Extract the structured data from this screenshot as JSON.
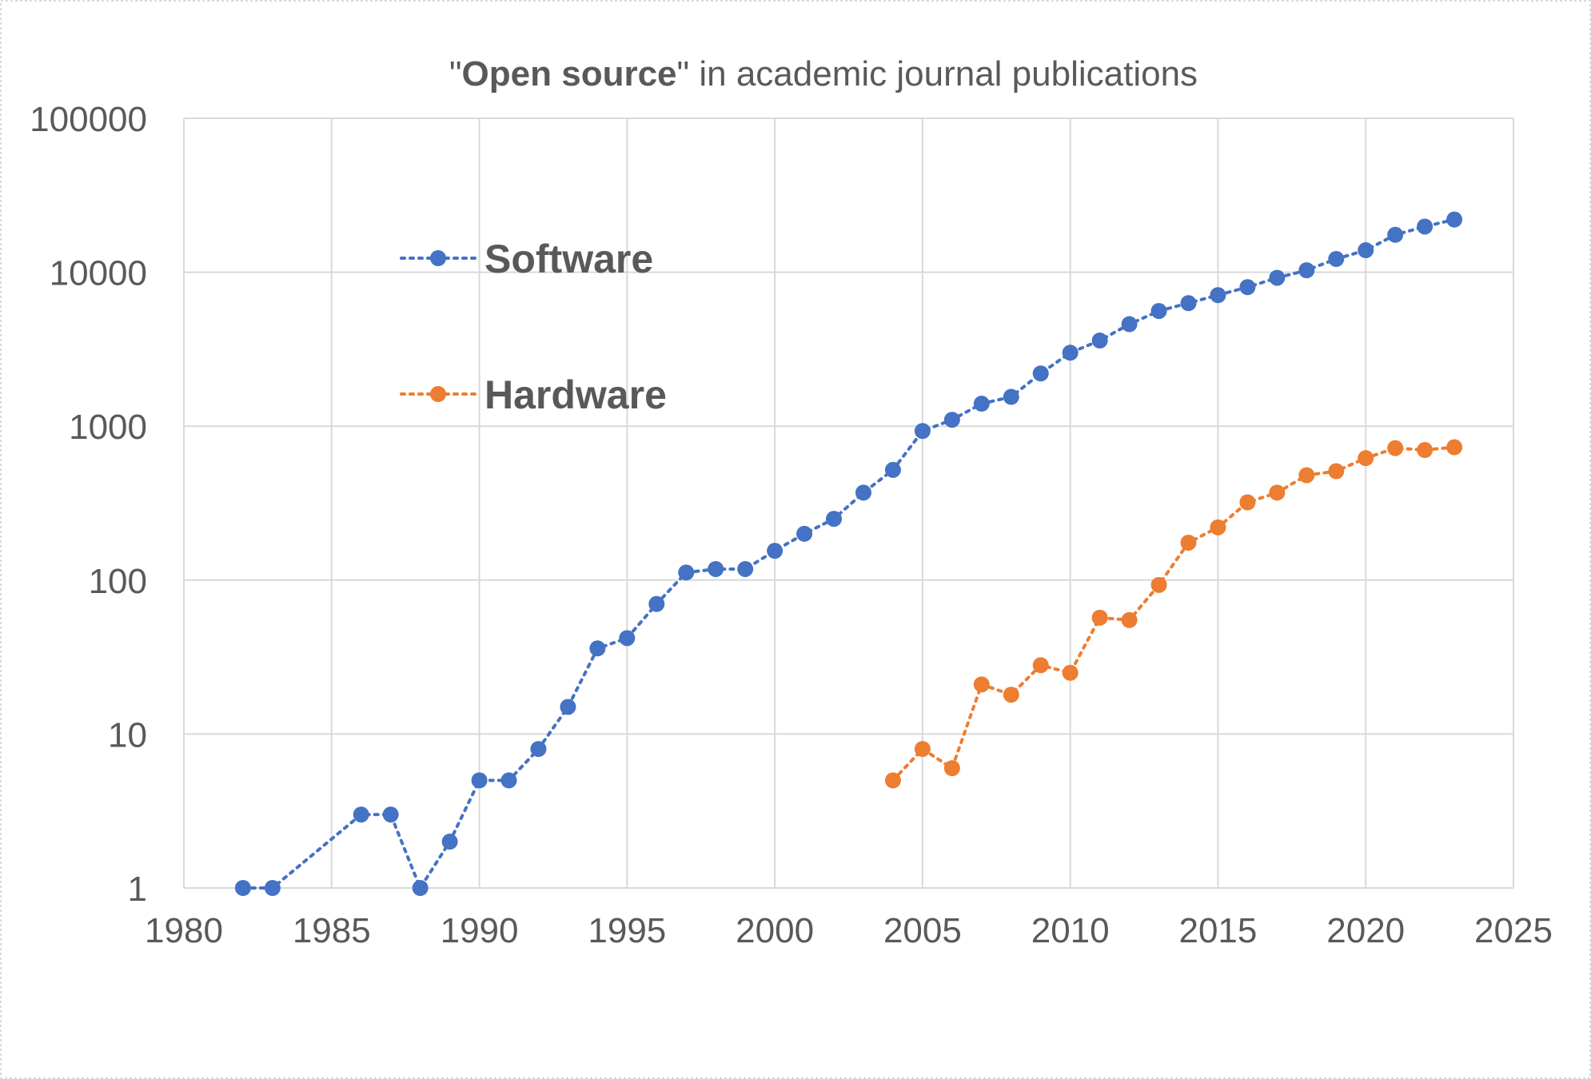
{
  "chart_data": {
    "type": "line",
    "title_open_quote": "\"",
    "title_bold": "Open source",
    "title_rest": "\" in academic journal publications",
    "xlabel": "",
    "ylabel": "",
    "xlim": [
      1980,
      2025
    ],
    "xticks": [
      "1980",
      "1985",
      "1990",
      "1995",
      "2000",
      "2005",
      "2010",
      "2015",
      "2020",
      "2025"
    ],
    "yscale": "log",
    "ylim": [
      1,
      100000
    ],
    "yticks": [
      "1",
      "10",
      "100",
      "1000",
      "10000",
      "100000"
    ],
    "grid": true,
    "legend_position": "upper-left",
    "series": [
      {
        "name": "Software",
        "color": "#4472c4",
        "x": [
          1982,
          1983,
          1986,
          1987,
          1988,
          1989,
          1990,
          1991,
          1992,
          1993,
          1994,
          1995,
          1996,
          1997,
          1998,
          1999,
          2000,
          2001,
          2002,
          2003,
          2004,
          2005,
          2006,
          2007,
          2008,
          2009,
          2010,
          2011,
          2012,
          2013,
          2014,
          2015,
          2016,
          2017,
          2018,
          2019,
          2020,
          2021,
          2022,
          2023
        ],
        "values": [
          1,
          1,
          3,
          3,
          1,
          2,
          5,
          5,
          8,
          15,
          36,
          42,
          70,
          112,
          118,
          118,
          155,
          200,
          250,
          370,
          520,
          930,
          1100,
          1400,
          1550,
          2200,
          3000,
          3600,
          4600,
          5600,
          6300,
          7100,
          8000,
          9200,
          10300,
          12200,
          13900,
          17500,
          19800,
          22000
        ]
      },
      {
        "name": "Hardware",
        "color": "#ed7d31",
        "x": [
          2004,
          2005,
          2006,
          2007,
          2008,
          2009,
          2010,
          2011,
          2012,
          2013,
          2014,
          2015,
          2016,
          2017,
          2018,
          2019,
          2020,
          2021,
          2022,
          2023
        ],
        "values": [
          5,
          8,
          6,
          21,
          18,
          28,
          25,
          57,
          55,
          93,
          175,
          220,
          320,
          370,
          480,
          510,
          620,
          720,
          700,
          730
        ]
      }
    ]
  }
}
